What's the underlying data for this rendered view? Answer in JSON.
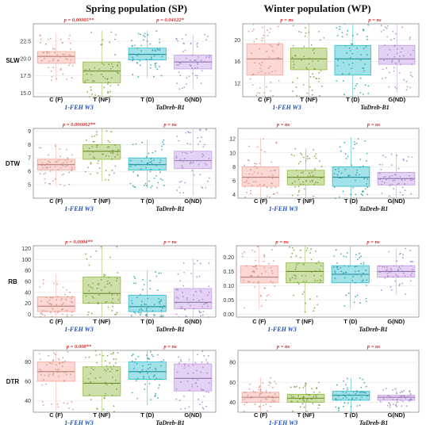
{
  "headers": {
    "left": "Spring population (SP)",
    "right": "Winter population (WP)"
  },
  "gene_labels": {
    "feh": "1-FEH W3",
    "dreb": "TaDreb-B1"
  },
  "colors": {
    "C": "#f6a89d",
    "T_NF": "#8fba3f",
    "T_D": "#2dbccb",
    "G": "#c39ae6"
  },
  "chart_data": [
    {
      "type": "box",
      "population": "SP",
      "ylabel": "SLW",
      "ylim": [
        14.5,
        25
      ],
      "yticks": [
        15.0,
        17.5,
        20.0,
        22.5
      ],
      "tick_decimals": 1,
      "categories": [
        "C (F)",
        "T (NF)",
        "T (D)",
        "G(ND)"
      ],
      "pvalues": [
        {
          "text": "p = 0.00005**",
          "between": [
            0,
            1
          ]
        },
        {
          "text": "p = 0.04122*",
          "between": [
            2,
            3
          ]
        }
      ],
      "boxes": [
        {
          "q1": 19.3,
          "med": 20.3,
          "q3": 21.0
        },
        {
          "q1": 16.5,
          "med": 18.2,
          "q3": 19.5
        },
        {
          "q1": 19.8,
          "med": 20.6,
          "q3": 21.5
        },
        {
          "q1": 18.5,
          "med": 19.5,
          "q3": 20.5
        }
      ]
    },
    {
      "type": "box",
      "population": "WP",
      "ylabel": "",
      "ylim": [
        9.5,
        23
      ],
      "yticks": [
        12,
        16,
        20
      ],
      "tick_decimals": 0,
      "categories": [
        "C (F)",
        "T (NF)",
        "T (D)",
        "G(ND)"
      ],
      "pvalues": [
        {
          "text": "p = ns",
          "between": [
            0,
            1
          ]
        },
        {
          "text": "p = ns",
          "between": [
            2,
            3
          ]
        }
      ],
      "boxes": [
        {
          "q1": 13.5,
          "med": 16.5,
          "q3": 19.3
        },
        {
          "q1": 14.5,
          "med": 16.5,
          "q3": 18.5
        },
        {
          "q1": 13.5,
          "med": 16.5,
          "q3": 19.0
        },
        {
          "q1": 15.5,
          "med": 16.5,
          "q3": 19.0
        }
      ]
    },
    {
      "type": "box",
      "population": "SP",
      "ylabel": "DTW",
      "ylim": [
        4,
        9.2
      ],
      "yticks": [
        5,
        6,
        7,
        8,
        9
      ],
      "tick_decimals": 0,
      "categories": [
        "C (F)",
        "T (NF)",
        "T (D)",
        "G(ND)"
      ],
      "pvalues": [
        {
          "text": "p = 0.000002**",
          "between": [
            0,
            1
          ]
        },
        {
          "text": "p = ns",
          "between": [
            2,
            3
          ]
        }
      ],
      "boxes": [
        {
          "q1": 6.1,
          "med": 6.5,
          "q3": 6.9
        },
        {
          "q1": 6.9,
          "med": 7.5,
          "q3": 8.0
        },
        {
          "q1": 6.1,
          "med": 6.5,
          "q3": 7.0
        },
        {
          "q1": 6.2,
          "med": 6.8,
          "q3": 7.5
        }
      ]
    },
    {
      "type": "box",
      "population": "WP",
      "ylabel": "",
      "ylim": [
        3.5,
        13.5
      ],
      "yticks": [
        4,
        6,
        8,
        10,
        12
      ],
      "tick_decimals": 0,
      "categories": [
        "C (F)",
        "T (NF)",
        "T (D)",
        "G(ND)"
      ],
      "pvalues": [
        {
          "text": "p = ns",
          "between": [
            0,
            1
          ]
        },
        {
          "text": "p = ns",
          "between": [
            2,
            3
          ]
        }
      ],
      "boxes": [
        {
          "q1": 5.2,
          "med": 6.5,
          "q3": 8.0
        },
        {
          "q1": 5.4,
          "med": 6.5,
          "q3": 7.5
        },
        {
          "q1": 5.2,
          "med": 6.5,
          "q3": 8.0
        },
        {
          "q1": 5.4,
          "med": 6.3,
          "q3": 7.2
        }
      ]
    },
    {
      "type": "box",
      "population": "SP",
      "ylabel": "RB",
      "ylim": [
        -5,
        125
      ],
      "yticks": [
        0,
        20,
        40,
        60,
        80,
        100,
        120
      ],
      "tick_decimals": 0,
      "categories": [
        "C (F)",
        "T (NF)",
        "T (D)",
        "G(ND)"
      ],
      "pvalues": [
        {
          "text": "p = 0.0004**",
          "between": [
            0,
            1
          ]
        },
        {
          "text": "p = ns",
          "between": [
            2,
            3
          ]
        }
      ],
      "boxes": [
        {
          "q1": 5,
          "med": 15,
          "q3": 32
        },
        {
          "q1": 20,
          "med": 38,
          "q3": 68
        },
        {
          "q1": 5,
          "med": 14,
          "q3": 35
        },
        {
          "q1": 10,
          "med": 22,
          "q3": 47
        }
      ]
    },
    {
      "type": "box",
      "population": "WP",
      "ylabel": "",
      "ylim": [
        -0.01,
        0.24
      ],
      "yticks": [
        0.0,
        0.05,
        0.1,
        0.15,
        0.2
      ],
      "tick_decimals": 2,
      "categories": [
        "C (F)",
        "T (NF)",
        "T (D)",
        "G(ND)"
      ],
      "pvalues": [
        {
          "text": "p = ns",
          "between": [
            0,
            1
          ]
        },
        {
          "text": "p = ns",
          "between": [
            2,
            3
          ]
        }
      ],
      "boxes": [
        {
          "q1": 0.11,
          "med": 0.13,
          "q3": 0.17
        },
        {
          "q1": 0.11,
          "med": 0.15,
          "q3": 0.18
        },
        {
          "q1": 0.11,
          "med": 0.14,
          "q3": 0.17
        },
        {
          "q1": 0.13,
          "med": 0.15,
          "q3": 0.17
        }
      ]
    },
    {
      "type": "box",
      "population": "SP",
      "ylabel": "DTR",
      "ylim": [
        28,
        92
      ],
      "yticks": [
        40,
        60,
        80
      ],
      "tick_decimals": 0,
      "categories": [
        "C (F)",
        "T (NF)",
        "T (D)",
        "G(ND)"
      ],
      "pvalues": [
        {
          "text": "p = 0.008**",
          "between": [
            0,
            1
          ]
        },
        {
          "text": "p = ns",
          "between": [
            2,
            3
          ]
        }
      ],
      "boxes": [
        {
          "q1": 60,
          "med": 70,
          "q3": 80
        },
        {
          "q1": 45,
          "med": 58,
          "q3": 75
        },
        {
          "q1": 62,
          "med": 70,
          "q3": 80
        },
        {
          "q1": 50,
          "med": 63,
          "q3": 78
        }
      ]
    },
    {
      "type": "box",
      "population": "WP",
      "ylabel": "",
      "ylim": [
        30,
        92
      ],
      "yticks": [
        40,
        60,
        80
      ],
      "tick_decimals": 0,
      "categories": [
        "C (F)",
        "T (NF)",
        "T (D)",
        "G(ND)"
      ],
      "pvalues": [
        {
          "text": "p = ns",
          "between": [
            0,
            1
          ]
        },
        {
          "text": "p = ns",
          "between": [
            2,
            3
          ]
        }
      ],
      "boxes": [
        {
          "q1": 40,
          "med": 45,
          "q3": 50
        },
        {
          "q1": 40,
          "med": 44,
          "q3": 48
        },
        {
          "q1": 42,
          "med": 47,
          "q3": 51
        },
        {
          "q1": 42,
          "med": 45,
          "q3": 47
        }
      ]
    }
  ]
}
